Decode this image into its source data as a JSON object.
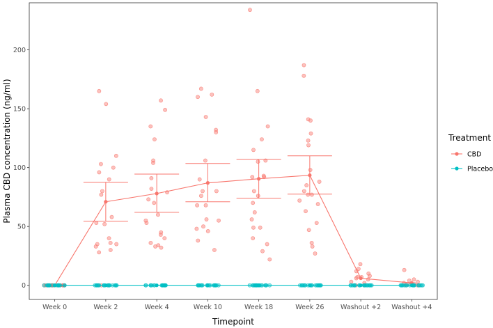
{
  "chart_data": {
    "type": "line",
    "xlabel": "Timepoint",
    "ylabel": "Plasma CBD concentration (ng/ml)",
    "categories": [
      "Week 0",
      "Week 2",
      "Week 4",
      "Week 10",
      "Week 18",
      "Week 26",
      "Washout +2",
      "Washout +4"
    ],
    "ylim": [
      -12,
      240
    ],
    "yticks": [
      0,
      50,
      100,
      150,
      200
    ],
    "grid": true,
    "legend": {
      "title": "Treatment",
      "position": "right"
    },
    "series": [
      {
        "name": "CBD",
        "color": "#F8766D",
        "mean": [
          0,
          71,
          78,
          87,
          90.5,
          93.5,
          6,
          2
        ],
        "error_low": [
          null,
          54.5,
          62,
          71,
          74,
          77.5,
          null,
          null
        ],
        "error_high": [
          null,
          87.5,
          94.5,
          103.5,
          107,
          110,
          null,
          null
        ],
        "points": [
          [
            0,
            0,
            0,
            0,
            0,
            0,
            0,
            0,
            0,
            0,
            0,
            0,
            0,
            0,
            0,
            0,
            0,
            0,
            0
          ],
          [
            165,
            154,
            110,
            103,
            100,
            96,
            90,
            80,
            77,
            58,
            53,
            52,
            40,
            36,
            35,
            35,
            33,
            30,
            28,
            0,
            0,
            0
          ],
          [
            157,
            149,
            135,
            124,
            106,
            104,
            91,
            82,
            79,
            73,
            70,
            60,
            55,
            53,
            45,
            43,
            40,
            36,
            34,
            33,
            32
          ],
          [
            167,
            162,
            160,
            143,
            132,
            130,
            106,
            90,
            80,
            80,
            76,
            68,
            68,
            56,
            55,
            50,
            48,
            46,
            38,
            30
          ],
          [
            234,
            165,
            135,
            124,
            115,
            106,
            105,
            93,
            92,
            92,
            80,
            76,
            70,
            62,
            56,
            49,
            49,
            40,
            35,
            29,
            22
          ],
          [
            187,
            178,
            141,
            140,
            129,
            123,
            119,
            98,
            88,
            85,
            80,
            77,
            77,
            72,
            69,
            63,
            53,
            47,
            36,
            33,
            27
          ],
          [
            18,
            14,
            12,
            10,
            8,
            7,
            7,
            6,
            5,
            3,
            2,
            0,
            0
          ],
          [
            13,
            5,
            4,
            3,
            2,
            1,
            1,
            0,
            0,
            0
          ]
        ]
      },
      {
        "name": "Placebo",
        "color": "#00BFC4",
        "mean": [
          0,
          0,
          0,
          0,
          0,
          0,
          0,
          0
        ],
        "points": [
          [
            0,
            0,
            0,
            0,
            0,
            0,
            0,
            0,
            0,
            0,
            0,
            0,
            0,
            0,
            0,
            0,
            0,
            0
          ],
          [
            0,
            0,
            0,
            0,
            0,
            0,
            0,
            0,
            0,
            0,
            0,
            0,
            0,
            0,
            0,
            0,
            0,
            0
          ],
          [
            0,
            0,
            0,
            0,
            0,
            0,
            0,
            0,
            0,
            0,
            0,
            0,
            0,
            0,
            0,
            0,
            0,
            0
          ],
          [
            0,
            0,
            0,
            0,
            0,
            0,
            0,
            0,
            0,
            0,
            0,
            0,
            0,
            0,
            0,
            0,
            0,
            0
          ],
          [
            0,
            0,
            0,
            0,
            0,
            0,
            0,
            0,
            0,
            0,
            0,
            0,
            0,
            0,
            0,
            0,
            0,
            0
          ],
          [
            0,
            0,
            0,
            0,
            0,
            0,
            0,
            0,
            0,
            0,
            0,
            0,
            0,
            0,
            0,
            0,
            0,
            0
          ],
          [
            0,
            0,
            0,
            0,
            0,
            0,
            0,
            0,
            0,
            0,
            0,
            0,
            0,
            0,
            0,
            0,
            0,
            0
          ],
          [
            0,
            0,
            0,
            0,
            0,
            0,
            0,
            0,
            0,
            0,
            0,
            0,
            0,
            0,
            0,
            0,
            0,
            0
          ]
        ]
      }
    ]
  }
}
